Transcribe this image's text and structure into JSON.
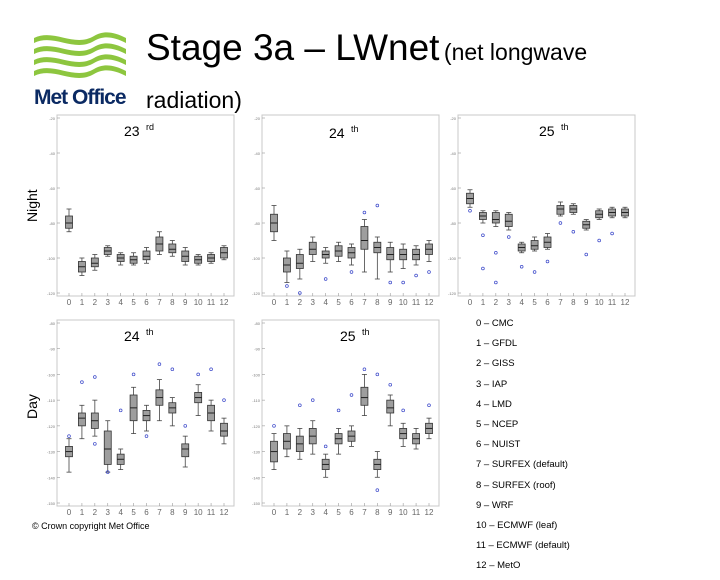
{
  "title": {
    "main": "Stage 3a – LWnet",
    "sub": "(net longwave",
    "line2": "radiation)"
  },
  "logo": {
    "text": "Met Office",
    "accent": "#8dc63f",
    "text_color": "#0b2a63"
  },
  "row_labels": {
    "night": "Night",
    "day": "Day"
  },
  "copyright": "© Crown copyright   Met Office",
  "legend": [
    "0 – CMC",
    "1 – GFDL",
    "2 – GISS",
    "3 – IAP",
    "4 – LMD",
    "5 – NCEP",
    "6 – NUIST",
    "7 – SURFEX (default)",
    "8 – SURFEX (roof)",
    "9 – WRF",
    "10 – ECMWF (leaf)",
    "11 – ECMWF (default)",
    "12 – MetO"
  ],
  "chart_data": [
    {
      "type": "box",
      "panel": "night-23",
      "title": "23",
      "title_sup": "rd",
      "x": [
        0,
        1,
        2,
        3,
        4,
        5,
        6,
        7,
        8,
        9,
        10,
        11,
        12
      ],
      "ylim": [
        -120,
        -20
      ],
      "yticks": [
        -20,
        -40,
        -60,
        -80,
        -100,
        -120
      ],
      "boxes": [
        {
          "x": 0,
          "q1": -83,
          "median": -80,
          "q3": -76,
          "low": -85,
          "high": -72
        },
        {
          "x": 1,
          "q1": -108,
          "median": -105,
          "q3": -102,
          "low": -110,
          "high": -100
        },
        {
          "x": 2,
          "q1": -105,
          "median": -103,
          "q3": -100,
          "low": -107,
          "high": -98
        },
        {
          "x": 3,
          "q1": -98,
          "median": -96,
          "q3": -94,
          "low": -99,
          "high": -93
        },
        {
          "x": 4,
          "q1": -102,
          "median": -100,
          "q3": -98,
          "low": -104,
          "high": -97
        },
        {
          "x": 5,
          "q1": -103,
          "median": -101,
          "q3": -99,
          "low": -104,
          "high": -97
        },
        {
          "x": 6,
          "q1": -101,
          "median": -99,
          "q3": -96,
          "low": -103,
          "high": -94
        },
        {
          "x": 7,
          "q1": -96,
          "median": -92,
          "q3": -88,
          "low": -98,
          "high": -85
        },
        {
          "x": 8,
          "q1": -97,
          "median": -95,
          "q3": -92,
          "low": -99,
          "high": -90
        },
        {
          "x": 9,
          "q1": -102,
          "median": -99,
          "q3": -96,
          "low": -104,
          "high": -94
        },
        {
          "x": 10,
          "q1": -103,
          "median": -101,
          "q3": -99,
          "low": -104,
          "high": -98
        },
        {
          "x": 11,
          "q1": -102,
          "median": -100,
          "q3": -98,
          "low": -103,
          "high": -97
        },
        {
          "x": 12,
          "q1": -100,
          "median": -97,
          "q3": -94,
          "low": -101,
          "high": -93
        }
      ],
      "outliers": []
    },
    {
      "type": "box",
      "panel": "night-24",
      "title": "24",
      "title_sup": "th",
      "x": [
        0,
        1,
        2,
        3,
        4,
        5,
        6,
        7,
        8,
        9,
        10,
        11,
        12
      ],
      "ylim": [
        -120,
        -20
      ],
      "yticks": [
        -20,
        -40,
        -60,
        -80,
        -100,
        -120
      ],
      "boxes": [
        {
          "x": 0,
          "q1": -85,
          "median": -80,
          "q3": -75,
          "low": -90,
          "high": -70
        },
        {
          "x": 1,
          "q1": -108,
          "median": -104,
          "q3": -100,
          "low": -114,
          "high": -96
        },
        {
          "x": 2,
          "q1": -106,
          "median": -103,
          "q3": -98,
          "low": -112,
          "high": -95
        },
        {
          "x": 3,
          "q1": -98,
          "median": -95,
          "q3": -91,
          "low": -102,
          "high": -88
        },
        {
          "x": 4,
          "q1": -100,
          "median": -98,
          "q3": -96,
          "low": -103,
          "high": -94
        },
        {
          "x": 5,
          "q1": -99,
          "median": -96,
          "q3": -93,
          "low": -102,
          "high": -91
        },
        {
          "x": 6,
          "q1": -100,
          "median": -97,
          "q3": -94,
          "low": -104,
          "high": -92
        },
        {
          "x": 7,
          "q1": -95,
          "median": -90,
          "q3": -82,
          "low": -108,
          "high": -78
        },
        {
          "x": 8,
          "q1": -97,
          "median": -94,
          "q3": -91,
          "low": -112,
          "high": -88
        },
        {
          "x": 9,
          "q1": -101,
          "median": -98,
          "q3": -94,
          "low": -108,
          "high": -91
        },
        {
          "x": 10,
          "q1": -101,
          "median": -98,
          "q3": -95,
          "low": -106,
          "high": -92
        },
        {
          "x": 11,
          "q1": -101,
          "median": -98,
          "q3": -95,
          "low": -104,
          "high": -93
        },
        {
          "x": 12,
          "q1": -98,
          "median": -95,
          "q3": -92,
          "low": -102,
          "high": -90
        }
      ],
      "outliers": [
        {
          "x": 1,
          "y": -116
        },
        {
          "x": 2,
          "y": -120
        },
        {
          "x": 4,
          "y": -112
        },
        {
          "x": 6,
          "y": -108
        },
        {
          "x": 7,
          "y": -74
        },
        {
          "x": 8,
          "y": -70
        },
        {
          "x": 9,
          "y": -114
        },
        {
          "x": 10,
          "y": -114
        },
        {
          "x": 11,
          "y": -110
        },
        {
          "x": 12,
          "y": -108
        }
      ]
    },
    {
      "type": "box",
      "panel": "night-25",
      "title": "25",
      "title_sup": "th",
      "x": [
        0,
        1,
        2,
        3,
        4,
        5,
        6,
        7,
        8,
        9,
        10,
        11,
        12
      ],
      "ylim": [
        -120,
        -20
      ],
      "yticks": [
        -20,
        -40,
        -60,
        -80,
        -100,
        -120
      ],
      "boxes": [
        {
          "x": 0,
          "q1": -69,
          "median": -66,
          "q3": -63,
          "low": -71,
          "high": -61
        },
        {
          "x": 1,
          "q1": -78,
          "median": -76,
          "q3": -74,
          "low": -80,
          "high": -73
        },
        {
          "x": 2,
          "q1": -80,
          "median": -78,
          "q3": -74,
          "low": -82,
          "high": -73
        },
        {
          "x": 3,
          "q1": -82,
          "median": -79,
          "q3": -75,
          "low": -84,
          "high": -74
        },
        {
          "x": 4,
          "q1": -96,
          "median": -94,
          "q3": -92,
          "low": -97,
          "high": -91
        },
        {
          "x": 5,
          "q1": -95,
          "median": -93,
          "q3": -90,
          "low": -96,
          "high": -88
        },
        {
          "x": 6,
          "q1": -94,
          "median": -91,
          "q3": -88,
          "low": -95,
          "high": -86
        },
        {
          "x": 7,
          "q1": -75,
          "median": -72,
          "q3": -70,
          "low": -76,
          "high": -68
        },
        {
          "x": 8,
          "q1": -74,
          "median": -72,
          "q3": -70,
          "low": -75,
          "high": -69
        },
        {
          "x": 9,
          "q1": -83,
          "median": -81,
          "q3": -79,
          "low": -84,
          "high": -78
        },
        {
          "x": 10,
          "q1": -77,
          "median": -75,
          "q3": -73,
          "low": -78,
          "high": -72
        },
        {
          "x": 11,
          "q1": -76,
          "median": -74,
          "q3": -72,
          "low": -77,
          "high": -71
        },
        {
          "x": 12,
          "q1": -76,
          "median": -74,
          "q3": -72,
          "low": -77,
          "high": -71
        }
      ],
      "outliers": [
        {
          "x": 0,
          "y": -73
        },
        {
          "x": 1,
          "y": -87
        },
        {
          "x": 2,
          "y": -97
        },
        {
          "x": 1,
          "y": -106
        },
        {
          "x": 2,
          "y": -114
        },
        {
          "x": 3,
          "y": -88
        },
        {
          "x": 4,
          "y": -105
        },
        {
          "x": 5,
          "y": -108
        },
        {
          "x": 6,
          "y": -102
        },
        {
          "x": 7,
          "y": -80
        },
        {
          "x": 8,
          "y": -85
        },
        {
          "x": 9,
          "y": -98
        },
        {
          "x": 10,
          "y": -90
        },
        {
          "x": 11,
          "y": -86
        }
      ]
    },
    {
      "type": "box",
      "panel": "day-24",
      "title": "24",
      "title_sup": "th",
      "x": [
        0,
        1,
        2,
        3,
        4,
        5,
        6,
        7,
        8,
        9,
        10,
        11,
        12
      ],
      "ylim": [
        -150,
        -80
      ],
      "yticks": [
        -80,
        -90,
        -100,
        -110,
        -120,
        -130,
        -140,
        -150
      ],
      "boxes": [
        {
          "x": 0,
          "q1": -132,
          "median": -130,
          "q3": -128,
          "low": -138,
          "high": -125
        },
        {
          "x": 1,
          "q1": -120,
          "median": -117,
          "q3": -115,
          "low": -125,
          "high": -112
        },
        {
          "x": 2,
          "q1": -121,
          "median": -118,
          "q3": -115,
          "low": -124,
          "high": -110
        },
        {
          "x": 3,
          "q1": -135,
          "median": -129,
          "q3": -122,
          "low": -138,
          "high": -118
        },
        {
          "x": 4,
          "q1": -135,
          "median": -133,
          "q3": -131,
          "low": -137,
          "high": -129
        },
        {
          "x": 5,
          "q1": -118,
          "median": -113,
          "q3": -108,
          "low": -123,
          "high": -105
        },
        {
          "x": 6,
          "q1": -118,
          "median": -116,
          "q3": -114,
          "low": -122,
          "high": -112
        },
        {
          "x": 7,
          "q1": -112,
          "median": -109,
          "q3": -106,
          "low": -118,
          "high": -102
        },
        {
          "x": 8,
          "q1": -115,
          "median": -113,
          "q3": -111,
          "low": -120,
          "high": -109
        },
        {
          "x": 9,
          "q1": -132,
          "median": -129,
          "q3": -127,
          "low": -136,
          "high": -124
        },
        {
          "x": 10,
          "q1": -111,
          "median": -109,
          "q3": -107,
          "low": -116,
          "high": -104
        },
        {
          "x": 11,
          "q1": -118,
          "median": -115,
          "q3": -112,
          "low": -122,
          "high": -110
        },
        {
          "x": 12,
          "q1": -124,
          "median": -122,
          "q3": -119,
          "low": -127,
          "high": -117
        }
      ],
      "outliers": [
        {
          "x": 0,
          "y": -124
        },
        {
          "x": 1,
          "y": -103
        },
        {
          "x": 2,
          "y": -101
        },
        {
          "x": 2,
          "y": -127
        },
        {
          "x": 3,
          "y": -138
        },
        {
          "x": 4,
          "y": -114
        },
        {
          "x": 5,
          "y": -100
        },
        {
          "x": 6,
          "y": -124
        },
        {
          "x": 7,
          "y": -96
        },
        {
          "x": 8,
          "y": -98
        },
        {
          "x": 9,
          "y": -120
        },
        {
          "x": 10,
          "y": -100
        },
        {
          "x": 11,
          "y": -98
        },
        {
          "x": 12,
          "y": -110
        }
      ]
    },
    {
      "type": "box",
      "panel": "day-25",
      "title": "25",
      "title_sup": "th",
      "x": [
        0,
        1,
        2,
        3,
        4,
        5,
        6,
        7,
        8,
        9,
        10,
        11,
        12
      ],
      "ylim": [
        -150,
        -80
      ],
      "yticks": [
        -80,
        -90,
        -100,
        -110,
        -120,
        -130,
        -140,
        -150
      ],
      "boxes": [
        {
          "x": 0,
          "q1": -134,
          "median": -130,
          "q3": -126,
          "low": -137,
          "high": -123
        },
        {
          "x": 1,
          "q1": -129,
          "median": -126,
          "q3": -123,
          "low": -132,
          "high": -120
        },
        {
          "x": 2,
          "q1": -130,
          "median": -127,
          "q3": -124,
          "low": -133,
          "high": -121
        },
        {
          "x": 3,
          "q1": -127,
          "median": -124,
          "q3": -121,
          "low": -131,
          "high": -118
        },
        {
          "x": 4,
          "q1": -137,
          "median": -135,
          "q3": -133,
          "low": -140,
          "high": -131
        },
        {
          "x": 5,
          "q1": -127,
          "median": -125,
          "q3": -123,
          "low": -131,
          "high": -121
        },
        {
          "x": 6,
          "q1": -126,
          "median": -124,
          "q3": -122,
          "low": -128,
          "high": -120
        },
        {
          "x": 7,
          "q1": -112,
          "median": -109,
          "q3": -105,
          "low": -116,
          "high": -100
        },
        {
          "x": 8,
          "q1": -137,
          "median": -135,
          "q3": -133,
          "low": -140,
          "high": -130
        },
        {
          "x": 9,
          "q1": -115,
          "median": -113,
          "q3": -110,
          "low": -120,
          "high": -108
        },
        {
          "x": 10,
          "q1": -125,
          "median": -123,
          "q3": -121,
          "low": -128,
          "high": -119
        },
        {
          "x": 11,
          "q1": -127,
          "median": -125,
          "q3": -123,
          "low": -129,
          "high": -121
        },
        {
          "x": 12,
          "q1": -123,
          "median": -121,
          "q3": -119,
          "low": -125,
          "high": -117
        }
      ],
      "outliers": [
        {
          "x": 0,
          "y": -120
        },
        {
          "x": 2,
          "y": -112
        },
        {
          "x": 3,
          "y": -110
        },
        {
          "x": 4,
          "y": -128
        },
        {
          "x": 5,
          "y": -114
        },
        {
          "x": 6,
          "y": -108
        },
        {
          "x": 7,
          "y": -98
        },
        {
          "x": 8,
          "y": -100
        },
        {
          "x": 8,
          "y": -145
        },
        {
          "x": 9,
          "y": -104
        },
        {
          "x": 10,
          "y": -114
        },
        {
          "x": 12,
          "y": -112
        }
      ]
    }
  ]
}
